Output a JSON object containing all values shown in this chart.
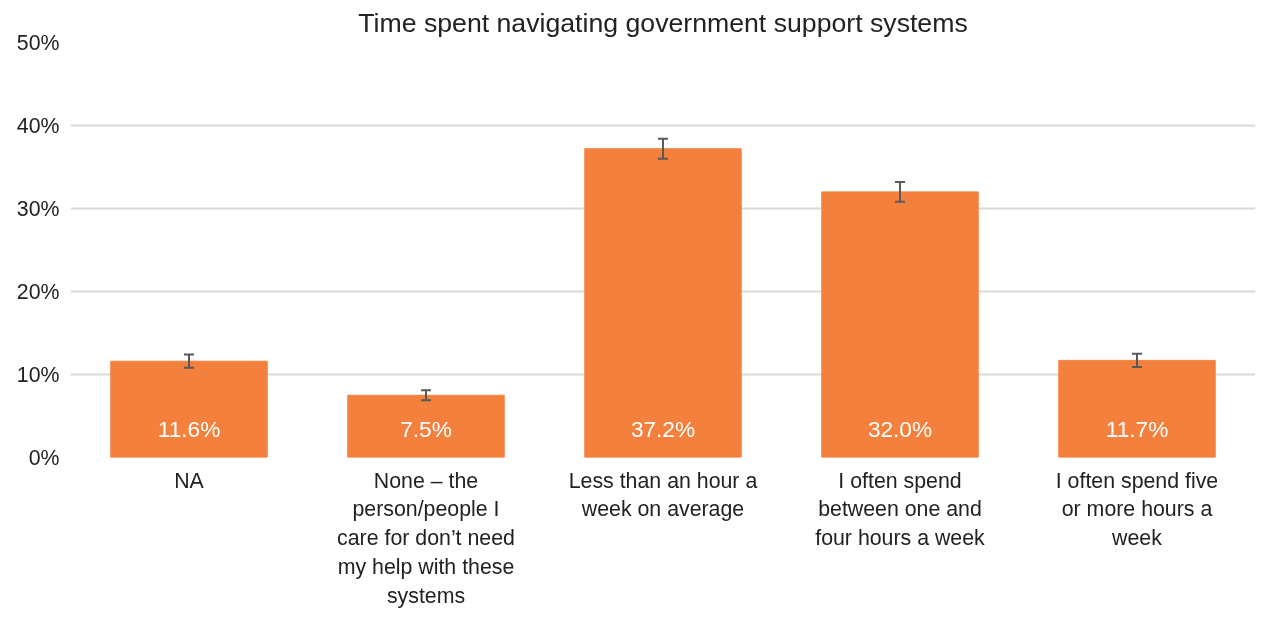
{
  "chart_data": {
    "type": "bar",
    "title": "Time spent navigating government support systems",
    "categories": [
      "NA",
      "None – the person/people I care for don’t need my help with these systems",
      "Less than an hour a week on average",
      "I often spend between one and four hours a week",
      "I often spend five or more hours a week"
    ],
    "values": [
      11.6,
      7.5,
      37.2,
      32.0,
      11.7
    ],
    "value_labels": [
      "11.6%",
      "7.5%",
      "37.2%",
      "32.0%",
      "11.7%"
    ],
    "errors": [
      0.8,
      0.6,
      1.2,
      1.2,
      0.8
    ],
    "color": "#f4803d",
    "ylim": [
      0,
      50
    ],
    "yticks": [
      {
        "value": 0,
        "label": "0%"
      },
      {
        "value": 10,
        "label": "10%"
      },
      {
        "value": 20,
        "label": "20%"
      },
      {
        "value": 30,
        "label": "30%"
      },
      {
        "value": 40,
        "label": "40%"
      },
      {
        "value": 50,
        "label": "50%"
      }
    ],
    "grid": "y"
  }
}
